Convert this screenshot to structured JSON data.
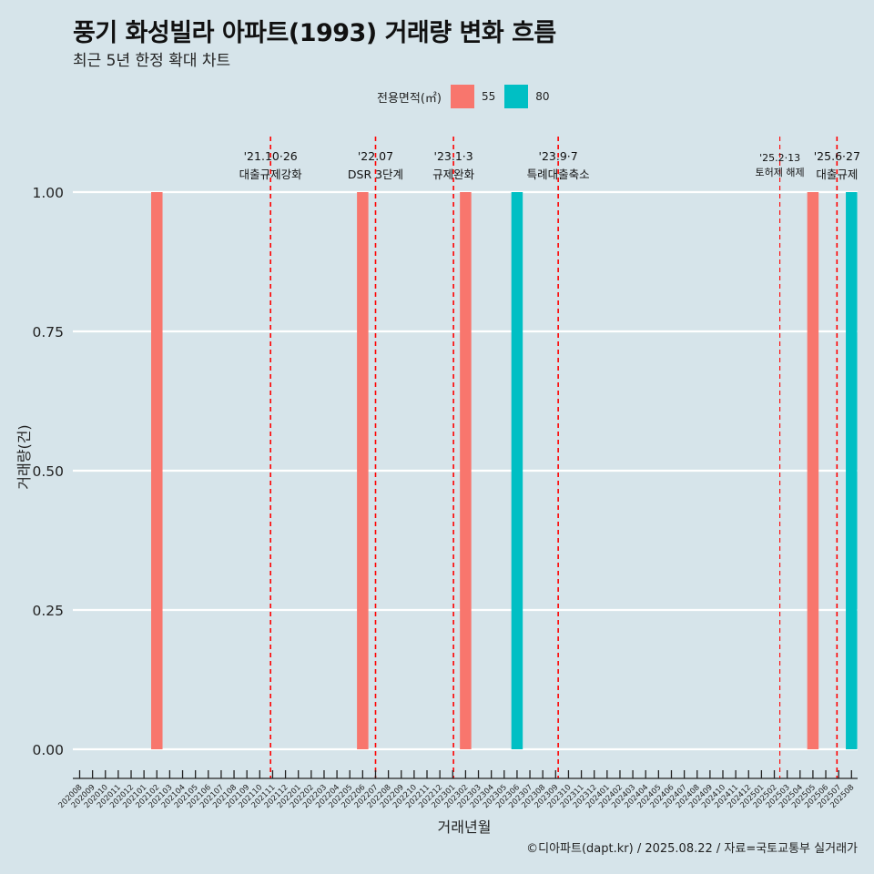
{
  "title": "풍기 화성빌라 아파트(1993) 거래량 변화 흐름",
  "subtitle": "최근 5년 한정 확대 차트",
  "legend": {
    "title": "전용면적(㎡)",
    "items": [
      {
        "label": "55",
        "color": "#F8766D"
      },
      {
        "label": "80",
        "color": "#00BFC4"
      }
    ]
  },
  "caption": "©디아파트(dapt.kr) / 2025.08.22 / 자료=국토교통부 실거래가",
  "chart_data": {
    "type": "bar",
    "xlabel": "거래년월",
    "ylabel": "거래량(건)",
    "ylim": [
      0,
      1
    ],
    "yticks": [
      "0.00",
      "0.25",
      "0.50",
      "0.75",
      "1.00"
    ],
    "categories": [
      "202008",
      "202009",
      "202010",
      "202011",
      "202012",
      "202101",
      "202102",
      "202103",
      "202104",
      "202105",
      "202106",
      "202107",
      "202108",
      "202109",
      "202110",
      "202111",
      "202112",
      "202201",
      "202202",
      "202203",
      "202204",
      "202205",
      "202206",
      "202207",
      "202208",
      "202209",
      "202210",
      "202211",
      "202212",
      "202301",
      "202302",
      "202303",
      "202304",
      "202305",
      "202306",
      "202307",
      "202308",
      "202309",
      "202310",
      "202311",
      "202312",
      "202401",
      "202402",
      "202403",
      "202404",
      "202405",
      "202406",
      "202407",
      "202408",
      "202409",
      "202410",
      "202411",
      "202412",
      "202501",
      "202502",
      "202503",
      "202504",
      "202505",
      "202506",
      "202507",
      "202508"
    ],
    "bars": [
      {
        "month": "202102",
        "series": "55",
        "value": 1
      },
      {
        "month": "202206",
        "series": "55",
        "value": 1
      },
      {
        "month": "202302",
        "series": "55",
        "value": 1
      },
      {
        "month": "202306",
        "series": "80",
        "value": 1
      },
      {
        "month": "202505",
        "series": "55",
        "value": 1
      },
      {
        "month": "202508",
        "series": "80",
        "value": 1
      }
    ],
    "series_colors": {
      "55": "#F8766D",
      "80": "#00BFC4"
    },
    "annotations": [
      {
        "date": "'21.10·26",
        "text": "대출규제강화",
        "month": "202110",
        "day_frac": 0.84
      },
      {
        "date": "'22.07",
        "text": "DSR 3단계",
        "month": "202207",
        "day_frac": 0.0
      },
      {
        "date": "'23.1·3",
        "text": "규제완화",
        "month": "202301",
        "day_frac": 0.06
      },
      {
        "date": "'23.9·7",
        "text": "특례대출축소",
        "month": "202309",
        "day_frac": 0.2
      },
      {
        "date": "'25.2·13",
        "text": "토허제 해제",
        "month": "202502",
        "day_frac": 0.43,
        "small": true
      },
      {
        "date": "'25.6·27",
        "text": "대출규제",
        "month": "202506",
        "day_frac": 0.87
      }
    ]
  }
}
